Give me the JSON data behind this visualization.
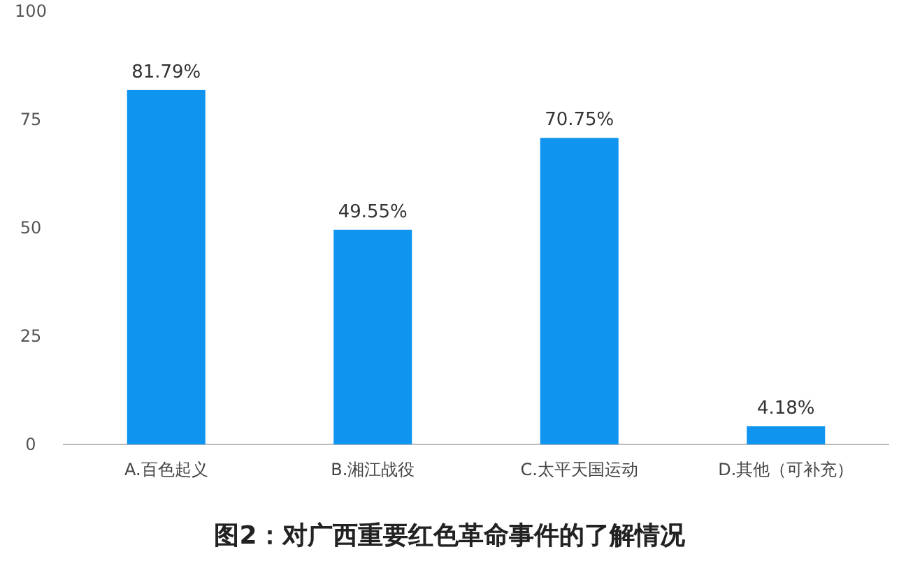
{
  "chart_data": {
    "type": "bar",
    "title": "图2：对广西重要红色革命事件的了解情况",
    "categories": [
      "A.百色起义",
      "B.湘江战役",
      "C.太平天国运动",
      "D.其他（可补充）"
    ],
    "values": [
      81.79,
      49.55,
      70.75,
      4.18
    ],
    "value_labels": [
      "81.79%",
      "49.55%",
      "70.75%",
      "4.18%"
    ],
    "color": "#0f94f0",
    "ylim": [
      0,
      100
    ],
    "yticks": [
      0,
      25,
      50,
      75,
      100
    ],
    "grid": false
  }
}
